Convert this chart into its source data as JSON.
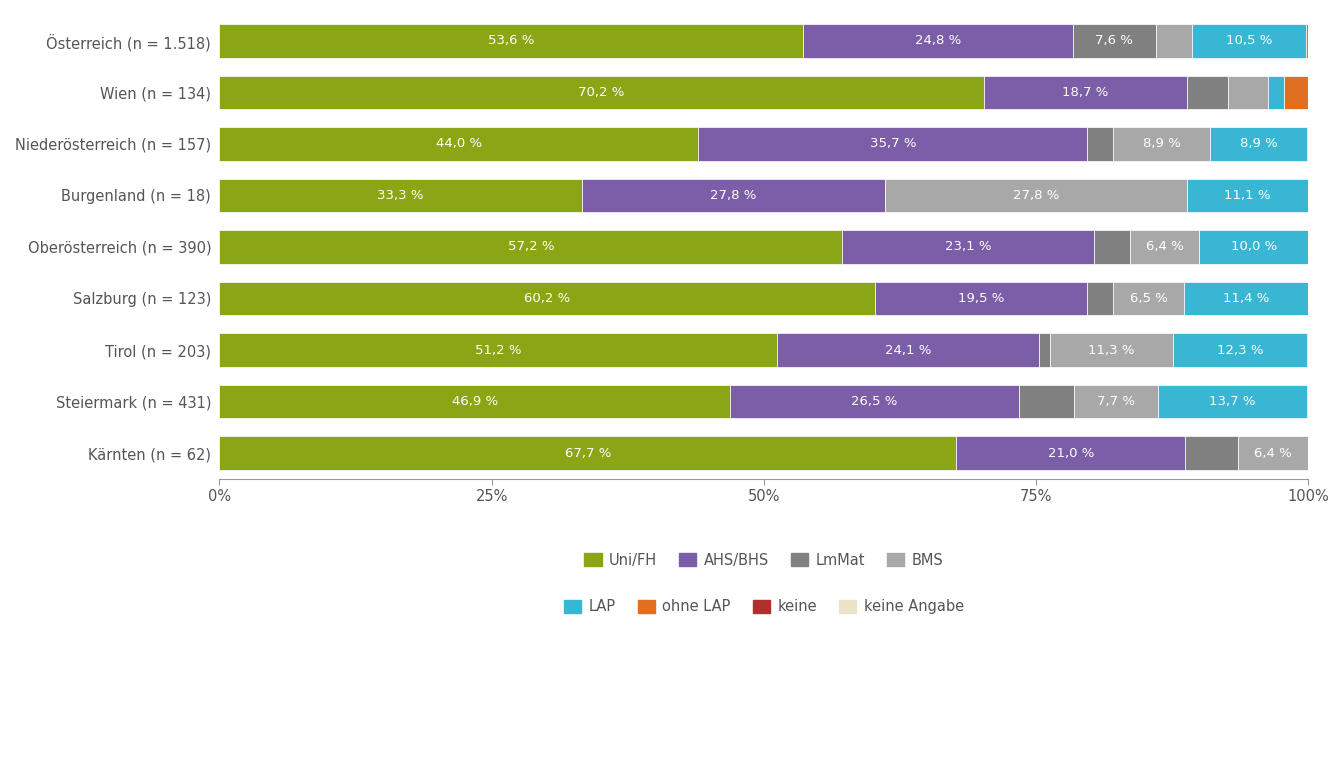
{
  "categories": [
    "Österreich (n = 1.518)",
    "Wien (n = 134)",
    "Niederösterreich (n = 157)",
    "Burgenland (n = 18)",
    "Oberösterreich (n = 390)",
    "Salzburg (n = 123)",
    "Tirol (n = 203)",
    "Steiermark (n = 431)",
    "Kärnten (n = 62)"
  ],
  "series": {
    "Uni/FH": [
      53.6,
      70.2,
      44.0,
      33.3,
      57.2,
      60.2,
      51.2,
      46.9,
      67.7
    ],
    "AHS/BHS": [
      24.8,
      18.7,
      35.7,
      27.8,
      23.1,
      19.5,
      24.1,
      26.5,
      21.0
    ],
    "LmMat": [
      7.6,
      3.7,
      2.4,
      0.0,
      3.3,
      2.4,
      1.0,
      5.1,
      4.9
    ],
    "BMS": [
      3.3,
      3.7,
      8.9,
      27.8,
      6.4,
      6.5,
      11.3,
      7.7,
      6.4
    ],
    "LAP": [
      10.5,
      1.5,
      8.9,
      11.1,
      10.0,
      11.4,
      12.3,
      13.7,
      0.0
    ],
    "ohne LAP": [
      0.2,
      2.2,
      0.1,
      0.0,
      0.0,
      0.0,
      0.1,
      0.1,
      0.0
    ],
    "keine": [
      0.0,
      0.0,
      0.0,
      0.0,
      0.0,
      0.0,
      0.0,
      0.0,
      0.0
    ],
    "keine Angabe": [
      0.0,
      0.0,
      0.0,
      0.0,
      0.0,
      0.0,
      0.0,
      0.0,
      0.0
    ]
  },
  "bar_labels": {
    "Uni/FH": [
      53.6,
      70.2,
      44.0,
      33.3,
      57.2,
      60.2,
      51.2,
      46.9,
      67.7
    ],
    "AHS/BHS": [
      24.8,
      18.7,
      35.7,
      27.8,
      23.1,
      19.5,
      24.1,
      26.5,
      21.0
    ],
    "LmMat": [
      7.6,
      null,
      null,
      null,
      null,
      null,
      null,
      null,
      null
    ],
    "BMS": [
      null,
      null,
      8.9,
      27.8,
      6.4,
      6.5,
      11.3,
      7.7,
      6.4
    ],
    "LAP": [
      10.5,
      null,
      8.9,
      11.1,
      10.0,
      11.4,
      12.3,
      13.7,
      null
    ],
    "ohne LAP": [
      null,
      null,
      null,
      null,
      null,
      null,
      null,
      null,
      null
    ],
    "keine": [
      null,
      null,
      null,
      null,
      null,
      null,
      null,
      null,
      null
    ],
    "keine Angabe": [
      null,
      null,
      null,
      null,
      null,
      null,
      null,
      null,
      null
    ]
  },
  "colors": {
    "Uni/FH": "#8aa614",
    "AHS/BHS": "#7b5ea7",
    "LmMat": "#808080",
    "BMS": "#a8a8a8",
    "LAP": "#38b6d4",
    "ohne LAP": "#e07020",
    "keine": "#b03030",
    "keine Angabe": "#e8e4c8"
  },
  "legend_order": [
    "Uni/FH",
    "AHS/BHS",
    "LmMat",
    "BMS",
    "LAP",
    "ohne LAP",
    "keine",
    "keine Angabe"
  ],
  "figsize": [
    13.44,
    7.68
  ],
  "dpi": 100,
  "bg_color": "#ffffff",
  "bar_height": 0.65,
  "label_fontsize": 9.5,
  "tick_label_color": "#555555",
  "axis_label_color": "#555555"
}
